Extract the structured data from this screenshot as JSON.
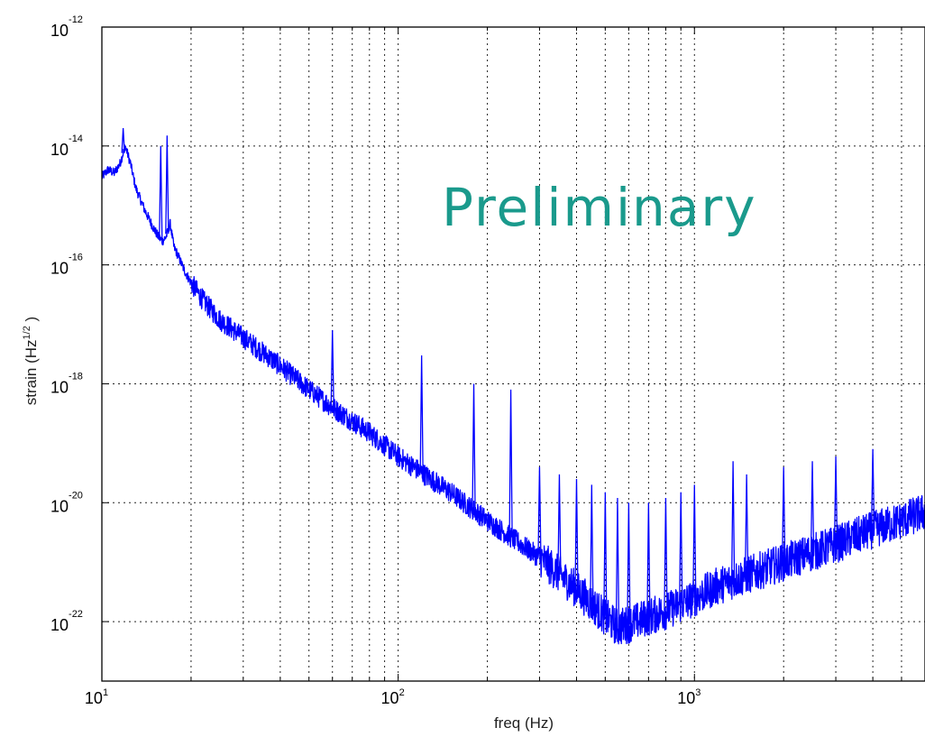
{
  "chart_data": {
    "type": "line",
    "title": "",
    "xlabel": "freq (Hz)",
    "ylabel_prefix": "strain (Hz",
    "ylabel_sup": "1/2",
    "ylabel_suffix": " )",
    "xscale": "log",
    "yscale": "log",
    "xlim": [
      10,
      6000
    ],
    "ylim": [
      1e-23,
      1e-12
    ],
    "grid": true,
    "x_ticks": [
      {
        "value": 10,
        "base": "10",
        "exp": "1"
      },
      {
        "value": 100,
        "base": "10",
        "exp": "2"
      },
      {
        "value": 1000,
        "base": "10",
        "exp": "3"
      }
    ],
    "y_ticks": [
      {
        "value": 1e-12,
        "base": "10",
        "exp": "-12"
      },
      {
        "value": 1e-14,
        "base": "10",
        "exp": "-14"
      },
      {
        "value": 1e-16,
        "base": "10",
        "exp": "-16"
      },
      {
        "value": 1e-18,
        "base": "10",
        "exp": "-18"
      },
      {
        "value": 1e-20,
        "base": "10",
        "exp": "-20"
      },
      {
        "value": 1e-22,
        "base": "10",
        "exp": "-22"
      }
    ],
    "annotation": {
      "text": "Preliminary",
      "color": "#1a9a8c"
    },
    "series": [
      {
        "color": "#0000ff",
        "baseline": {
          "x": [
            10,
            10.5,
            11,
            11.5,
            12,
            12.5,
            13,
            14,
            15,
            15.5,
            16,
            16.5,
            17,
            17.5,
            18,
            19,
            20,
            22,
            25,
            30,
            40,
            50,
            60,
            80,
            100,
            150,
            200,
            300,
            400,
            450,
            500,
            550,
            600,
            700,
            800,
            1000,
            1200,
            1500,
            2000,
            3000,
            4000,
            5000,
            6000
          ],
          "y": [
            3e-15,
            4e-15,
            3.5e-15,
            5e-15,
            1e-14,
            5e-15,
            2e-15,
            8e-16,
            4e-16,
            3e-16,
            2.5e-16,
            3e-16,
            5e-16,
            2e-16,
            1.5e-16,
            8e-17,
            5e-17,
            2.5e-17,
            1.2e-17,
            6e-18,
            2e-18,
            8e-19,
            4e-19,
            1.5e-19,
            6e-20,
            1.5e-20,
            5e-21,
            1.2e-21,
            3.5e-22,
            2e-22,
            1.2e-22,
            8e-23,
            9e-23,
            1.2e-22,
            1.5e-22,
            2.5e-22,
            4e-22,
            6e-22,
            1e-21,
            2e-21,
            3.5e-21,
            5e-21,
            7e-21
          ]
        },
        "spikes": [
          {
            "x": 11.8,
            "y": 2e-14
          },
          {
            "x": 15.8,
            "y": 1e-14
          },
          {
            "x": 16.6,
            "y": 1.5e-14
          },
          {
            "x": 60,
            "y": 8e-18
          },
          {
            "x": 120,
            "y": 3e-18
          },
          {
            "x": 180,
            "y": 1e-18
          },
          {
            "x": 240,
            "y": 8e-19
          },
          {
            "x": 300,
            "y": 4e-20
          },
          {
            "x": 350,
            "y": 3e-20
          },
          {
            "x": 400,
            "y": 2.5e-20
          },
          {
            "x": 450,
            "y": 2e-20
          },
          {
            "x": 500,
            "y": 1.5e-20
          },
          {
            "x": 550,
            "y": 1.2e-20
          },
          {
            "x": 600,
            "y": 1e-20
          },
          {
            "x": 700,
            "y": 1e-20
          },
          {
            "x": 800,
            "y": 1.2e-20
          },
          {
            "x": 900,
            "y": 1.5e-20
          },
          {
            "x": 1000,
            "y": 2e-20
          },
          {
            "x": 1350,
            "y": 5e-20
          },
          {
            "x": 1500,
            "y": 3e-20
          },
          {
            "x": 2000,
            "y": 4e-20
          },
          {
            "x": 2500,
            "y": 5e-20
          },
          {
            "x": 3000,
            "y": 6e-20
          },
          {
            "x": 4000,
            "y": 8e-20
          }
        ]
      }
    ]
  }
}
